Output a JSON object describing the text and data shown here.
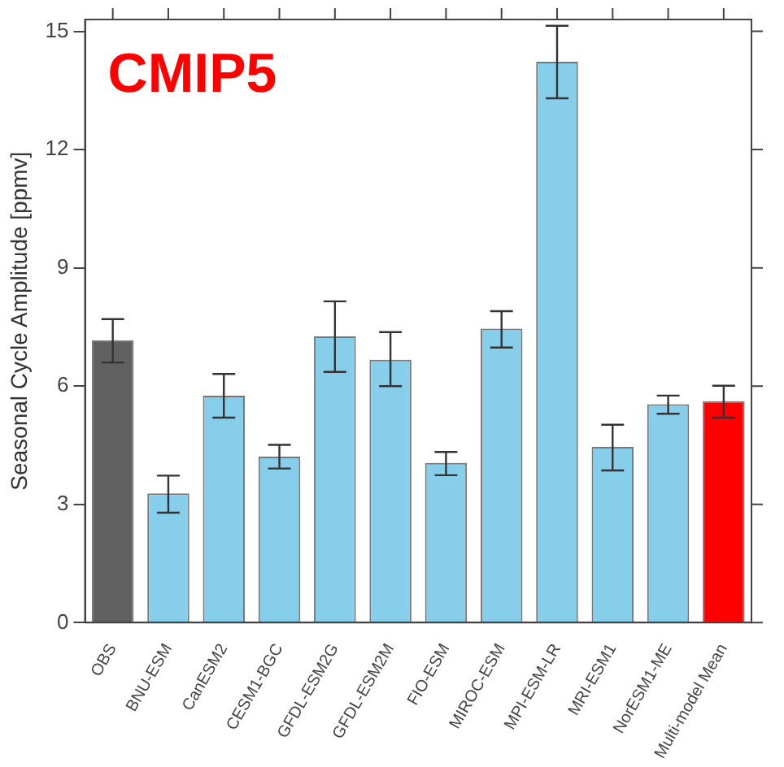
{
  "chart_data": {
    "type": "bar",
    "ylabel": "Seasonal Cycle Amplitude [ppmv]",
    "annotations": [
      "CMIP5"
    ],
    "categories": [
      "OBS",
      "BNU-ESM",
      "CanESM2",
      "CESM1-BGC",
      "GFDL-ESM2G",
      "GFDL-ESM2M",
      "FIO-ESM",
      "MIROC-ESM",
      "MPI-ESM-LR",
      "MRI-ESM1",
      "NorESM1-ME",
      "Multi-model Mean"
    ],
    "values": [
      7.16,
      3.28,
      5.76,
      4.21,
      7.26,
      6.67,
      4.05,
      7.46,
      14.23,
      4.46,
      5.54,
      5.62
    ],
    "errors": [
      [
        6.6,
        7.7
      ],
      [
        2.79,
        3.73
      ],
      [
        5.2,
        6.31
      ],
      [
        3.91,
        4.51
      ],
      [
        6.36,
        8.15
      ],
      [
        6.0,
        7.37
      ],
      [
        3.74,
        4.33
      ],
      [
        6.98,
        7.9
      ],
      [
        13.3,
        15.14
      ],
      [
        3.86,
        5.02
      ],
      [
        5.3,
        5.76
      ],
      [
        5.2,
        6.01
      ]
    ],
    "colors": [
      "#606060",
      "#87ceeb",
      "#87ceeb",
      "#87ceeb",
      "#87ceeb",
      "#87ceeb",
      "#87ceeb",
      "#87ceeb",
      "#87ceeb",
      "#87ceeb",
      "#87ceeb",
      "#ff0000"
    ],
    "ylim": [
      0,
      15.3
    ],
    "yticks": [
      0,
      3,
      6,
      9,
      12,
      15
    ],
    "grid": false,
    "legend": false
  }
}
